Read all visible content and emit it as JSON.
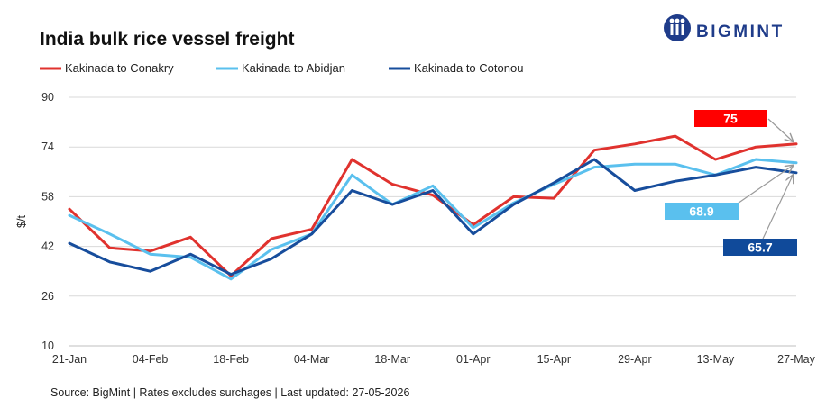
{
  "header": {
    "title": "India bulk rice vessel freight",
    "brand": "BIGMINT",
    "brand_color": "#1f3c8a"
  },
  "footer": {
    "source": "Source: BigMint  | Rates excludes surchages | Last updated: 27-05-2026"
  },
  "chart_data": {
    "type": "line",
    "title": "India bulk rice vessel freight",
    "ylabel": "$/t",
    "xlabel": "",
    "ylim": [
      10,
      90
    ],
    "yticks": [
      10,
      26,
      42,
      58,
      74,
      90
    ],
    "x": [
      "21-Jan",
      "28-Jan",
      "04-Feb",
      "11-Feb",
      "18-Feb",
      "25-Feb",
      "04-Mar",
      "11-Mar",
      "18-Mar",
      "25-Mar",
      "01-Apr",
      "08-Apr",
      "15-Apr",
      "22-Apr",
      "29-Apr",
      "06-May",
      "13-May",
      "20-May",
      "27-May"
    ],
    "xtick_labels": [
      "21-Jan",
      "",
      "04-Feb",
      "",
      "18-Feb",
      "",
      "04-Mar",
      "",
      "18-Mar",
      "",
      "01-Apr",
      "",
      "15-Apr",
      "",
      "29-Apr",
      "",
      "13-May",
      "",
      "27-May"
    ],
    "legend_position": "top-left",
    "grid": true,
    "series": [
      {
        "name": "Kakinada to Conakry",
        "color": "#e0322e",
        "values": [
          54,
          41.5,
          40.5,
          45,
          32.5,
          44.5,
          47.5,
          70,
          62,
          58.5,
          49,
          58,
          57.5,
          73,
          75,
          77.5,
          70,
          74,
          75
        ]
      },
      {
        "name": "Kakinada to Abidjan",
        "color": "#5ac0ee",
        "values": [
          52,
          46,
          39.5,
          38.5,
          31.5,
          41,
          46,
          65,
          55.5,
          61.5,
          48,
          56,
          62,
          67.5,
          68.5,
          68.5,
          65,
          70,
          68.9
        ]
      },
      {
        "name": "Kakinada to Cotonou",
        "color": "#174d9c",
        "values": [
          43,
          37,
          34,
          39.5,
          33,
          38,
          46,
          60,
          55.5,
          60,
          46,
          55.5,
          62.5,
          70,
          60,
          63,
          65,
          67.5,
          65.7
        ]
      }
    ],
    "annotations": [
      {
        "label": "75",
        "series": 0,
        "bg": "#ff0000",
        "fg": "#ffffff"
      },
      {
        "label": "68.9",
        "series": 1,
        "bg": "#5ac0ee",
        "fg": "#ffffff"
      },
      {
        "label": "65.7",
        "series": 2,
        "bg": "#104a9a",
        "fg": "#ffffff"
      }
    ]
  }
}
